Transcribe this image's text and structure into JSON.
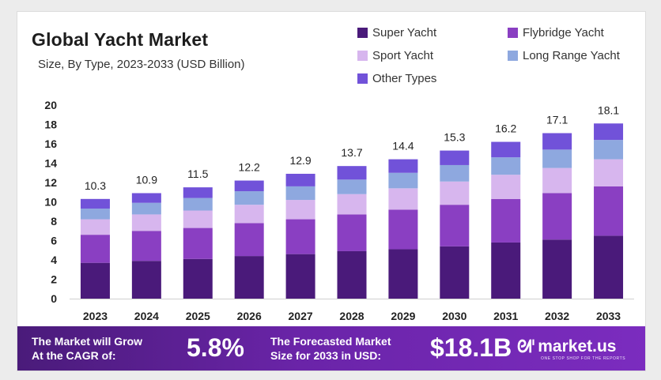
{
  "header": {
    "title": "Global Yacht Market",
    "subtitle": "Size, By Type, 2023-2033 (USD Billion)"
  },
  "chart_data": {
    "type": "bar",
    "stacked": true,
    "categories": [
      "2023",
      "2024",
      "2025",
      "2026",
      "2027",
      "2028",
      "2029",
      "2030",
      "2031",
      "2032",
      "2033"
    ],
    "totals": [
      10.3,
      10.9,
      11.5,
      12.2,
      12.9,
      13.7,
      14.4,
      15.3,
      16.2,
      17.1,
      18.1
    ],
    "total_labels": [
      "10.3",
      "10.9",
      "11.5",
      "12.2",
      "12.9",
      "13.7",
      "14.4",
      "15.3",
      "16.2",
      "17.1",
      "18.1"
    ],
    "series": [
      {
        "name": "Super Yacht",
        "color": "#4a1a7a",
        "values": [
          3.7,
          3.9,
          4.1,
          4.4,
          4.6,
          4.9,
          5.1,
          5.4,
          5.8,
          6.1,
          6.5
        ]
      },
      {
        "name": "Flybridge Yacht",
        "color": "#8a3fc2",
        "values": [
          2.9,
          3.1,
          3.2,
          3.4,
          3.6,
          3.8,
          4.1,
          4.3,
          4.5,
          4.8,
          5.1
        ]
      },
      {
        "name": "Sport Yacht",
        "color": "#d7b6ee",
        "values": [
          1.6,
          1.7,
          1.8,
          1.9,
          2.0,
          2.1,
          2.2,
          2.4,
          2.5,
          2.6,
          2.8
        ]
      },
      {
        "name": "Long Range Yacht",
        "color": "#8ea8df",
        "values": [
          1.1,
          1.2,
          1.3,
          1.4,
          1.4,
          1.5,
          1.6,
          1.7,
          1.8,
          1.9,
          2.0
        ]
      },
      {
        "name": "Other Types",
        "color": "#7152d9",
        "values": [
          1.0,
          1.0,
          1.1,
          1.1,
          1.3,
          1.4,
          1.4,
          1.5,
          1.6,
          1.7,
          1.7
        ]
      }
    ],
    "y_ticks": [
      "0",
      "2",
      "4",
      "6",
      "8",
      "10",
      "12",
      "14",
      "16",
      "18",
      "20"
    ],
    "ylim": [
      0,
      20
    ],
    "grid": false,
    "legend_position": "top-right"
  },
  "banner": {
    "cagr_label_line1": "The Market will Grow",
    "cagr_label_line2": "At the CAGR of:",
    "cagr_value": "5.8%",
    "forecast_label_line1": "The Forecasted Market",
    "forecast_label_line2": "Size for 2033 in USD:",
    "forecast_value": "$18.1B",
    "logo_mark": "ᘛᑊ",
    "logo_text": "market.us",
    "logo_tagline": "ONE STOP SHOP FOR THE REPORTS"
  }
}
